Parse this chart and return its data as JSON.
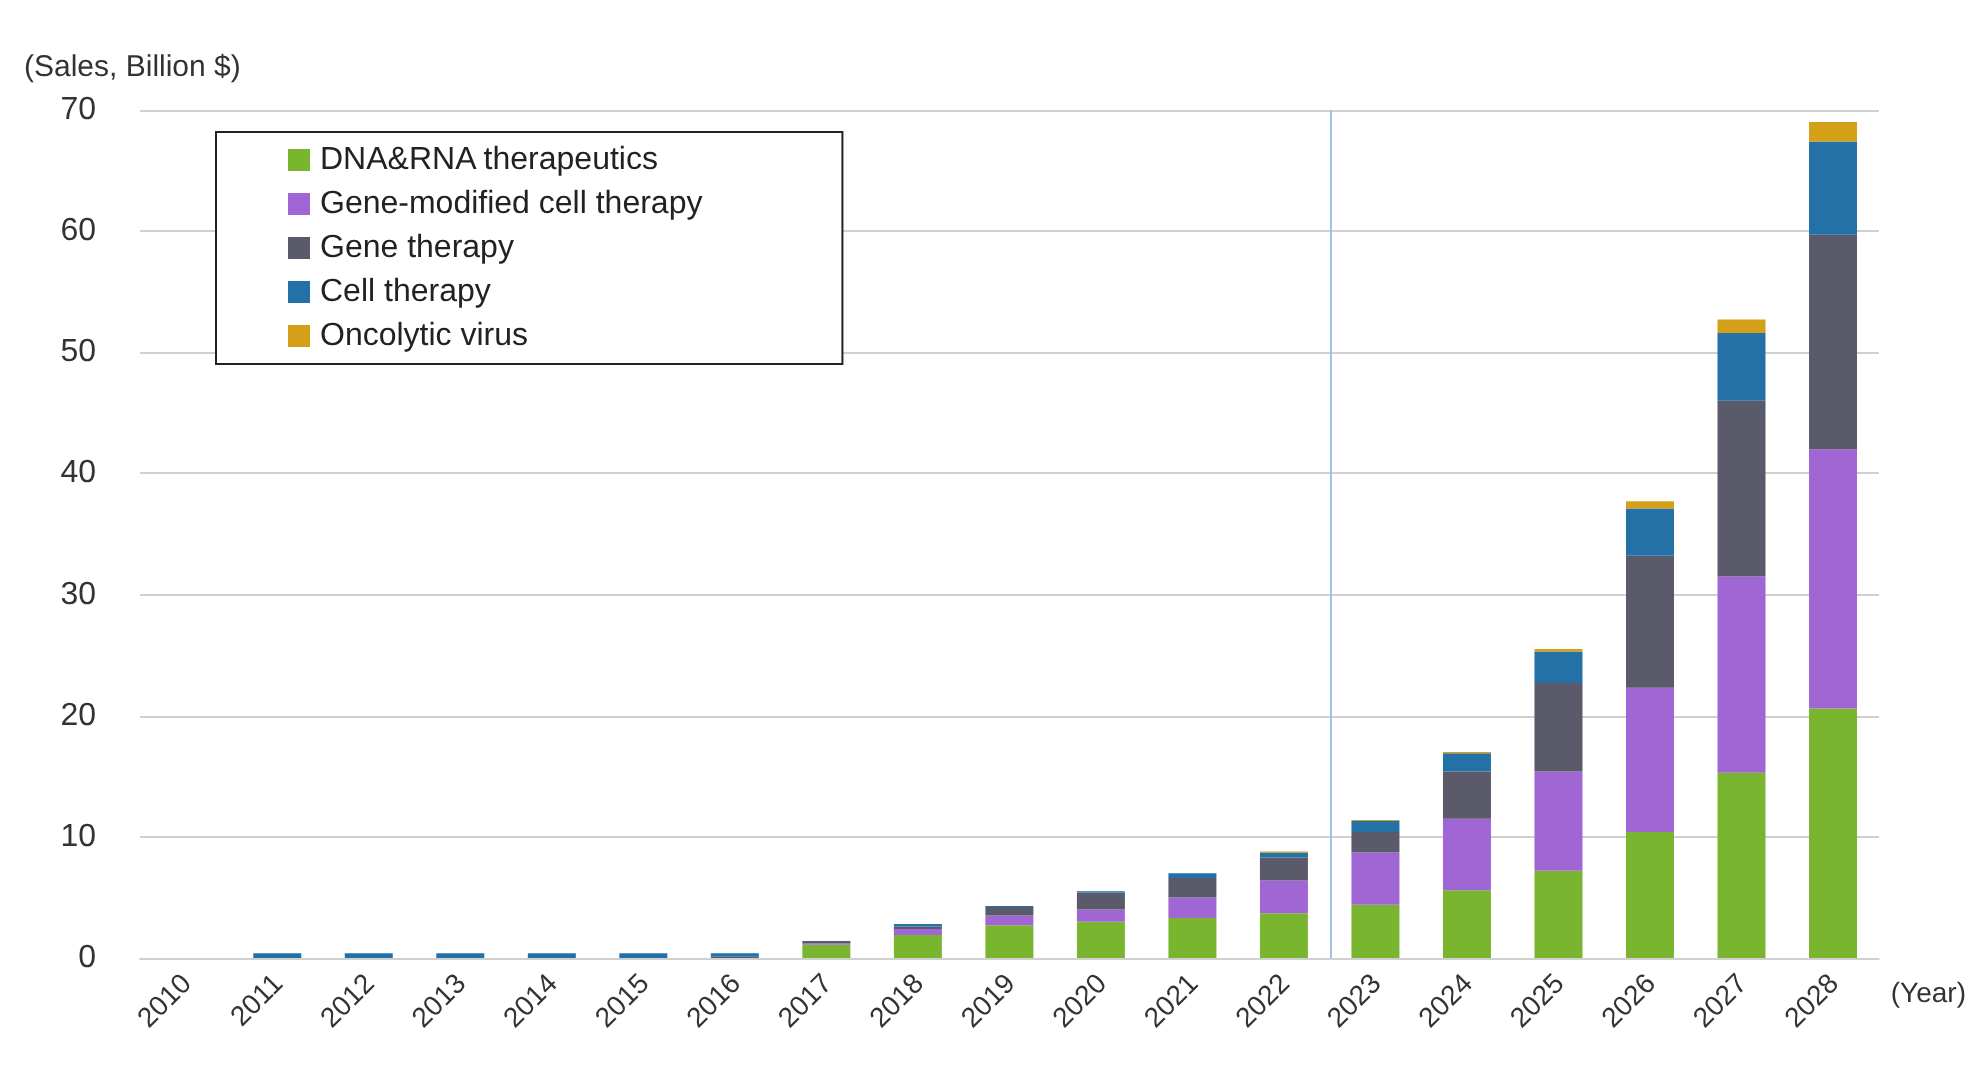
{
  "chart_data": {
    "type": "bar",
    "stacked": true,
    "ylabel": "(Sales, Billion $)",
    "xlabel": "(Year)",
    "x": [
      2010,
      2011,
      2012,
      2013,
      2014,
      2015,
      2016,
      2017,
      2018,
      2019,
      2020,
      2021,
      2022,
      2023,
      2024,
      2025,
      2026,
      2027,
      2028
    ],
    "xlim": [
      2009.5,
      2028.5
    ],
    "xticks": [
      2010,
      2011,
      2012,
      2013,
      2014,
      2015,
      2016,
      2017,
      2018,
      2019,
      2020,
      2021,
      2022,
      2023,
      2024,
      2025,
      2026,
      2027,
      2028
    ],
    "ylim": [
      0,
      70
    ],
    "yticks": [
      0,
      10,
      20,
      30,
      40,
      50,
      60,
      70
    ],
    "grid": "y",
    "legend": "top left",
    "series": [
      {
        "name": "DNA&RNA therapeutics",
        "color": "#7ab530",
        "values": [
          0,
          0,
          0,
          0,
          0,
          0,
          0,
          1.1,
          1.9,
          2.7,
          3.0,
          3.3,
          3.7,
          4.4,
          5.6,
          7.2,
          10.4,
          15.3,
          20.6
        ]
      },
      {
        "name": "Gene-modified cell therapy",
        "color": "#a066d3",
        "values": [
          0,
          0,
          0,
          0,
          0,
          0,
          0,
          0.1,
          0.5,
          0.8,
          1.0,
          1.7,
          2.7,
          4.3,
          5.9,
          8.2,
          11.9,
          16.2,
          21.4
        ]
      },
      {
        "name": "Gene therapy",
        "color": "#5a5a6a",
        "values": [
          0,
          0,
          0,
          0,
          0,
          0,
          0.1,
          0.2,
          0.2,
          0.7,
          1.4,
          1.6,
          1.9,
          1.7,
          3.9,
          7.3,
          10.9,
          14.5,
          17.7
        ]
      },
      {
        "name": "Cell therapy",
        "color": "#2471a8",
        "values": [
          0,
          0.4,
          0.4,
          0.4,
          0.4,
          0.4,
          0.3,
          0,
          0.2,
          0.1,
          0.1,
          0.4,
          0.4,
          0.9,
          1.5,
          2.6,
          3.9,
          5.6,
          7.7
        ]
      },
      {
        "name": "Oncolytic virus",
        "color": "#d4a017",
        "values": [
          0,
          0,
          0,
          0,
          0,
          0,
          0,
          0,
          0,
          0,
          0,
          0,
          0.1,
          0.1,
          0.1,
          0.2,
          0.6,
          1.1,
          1.6
        ]
      }
    ],
    "ref_lines": [
      {
        "axis": "x",
        "value": 2022.5,
        "color": "#9dc3e6"
      }
    ]
  }
}
